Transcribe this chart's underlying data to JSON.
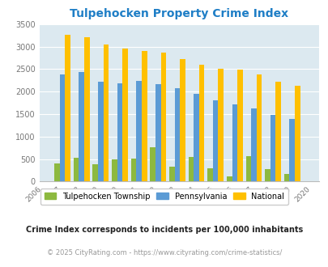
{
  "title": "Tulpehocken Property Crime Index",
  "years": [
    2006,
    2007,
    2008,
    2009,
    2010,
    2011,
    2012,
    2013,
    2014,
    2015,
    2016,
    2017,
    2018,
    2019,
    2020
  ],
  "tulpehocken": [
    0,
    400,
    520,
    390,
    490,
    510,
    770,
    330,
    540,
    300,
    120,
    570,
    280,
    160,
    0
  ],
  "pennsylvania": [
    0,
    2380,
    2440,
    2210,
    2180,
    2230,
    2160,
    2070,
    1950,
    1810,
    1720,
    1630,
    1480,
    1390,
    0
  ],
  "national": [
    0,
    3260,
    3200,
    3050,
    2960,
    2910,
    2860,
    2720,
    2600,
    2500,
    2480,
    2380,
    2210,
    2120,
    0
  ],
  "color_tulpehocken": "#8db93f",
  "color_pennsylvania": "#5b9bd5",
  "color_national": "#ffc000",
  "bg_color": "#dce9f0",
  "title_color": "#1f7ec6",
  "ylim": [
    0,
    3500
  ],
  "yticks": [
    0,
    500,
    1000,
    1500,
    2000,
    2500,
    3000,
    3500
  ],
  "tick_color": "#777777",
  "footnote1": "Crime Index corresponds to incidents per 100,000 inhabitants",
  "footnote2": "© 2025 CityRating.com - https://www.cityrating.com/crime-statistics/",
  "footnote1_color": "#222222",
  "footnote2_color": "#999999"
}
